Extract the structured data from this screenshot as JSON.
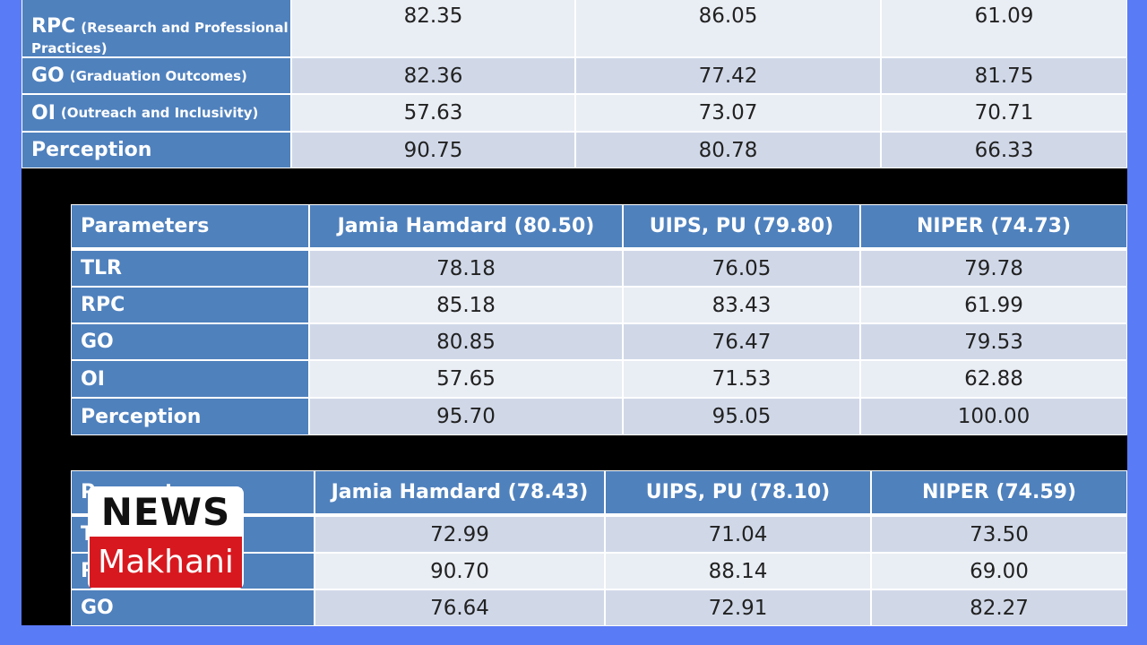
{
  "tables": [
    {
      "rows": [
        {
          "label": "RPC",
          "note": "(Research and Professional Practices)",
          "values": [
            "82.35",
            "86.05",
            "61.09"
          ]
        },
        {
          "label": "GO",
          "note": "(Graduation Outcomes)",
          "values": [
            "82.36",
            "77.42",
            "81.75"
          ]
        },
        {
          "label": "OI",
          "note": "(Outreach and Inclusivity)",
          "values": [
            "57.63",
            "73.07",
            "70.71"
          ]
        },
        {
          "label": "Perception",
          "values": [
            "90.75",
            "80.78",
            "66.33"
          ]
        }
      ]
    },
    {
      "header": [
        "Parameters",
        "Jamia Hamdard  (80.50)",
        "UIPS, PU (79.80)",
        "NIPER (74.73)"
      ],
      "rows": [
        {
          "label": "TLR",
          "values": [
            "78.18",
            "76.05",
            "79.78"
          ]
        },
        {
          "label": "RPC",
          "values": [
            "85.18",
            "83.43",
            "61.99"
          ]
        },
        {
          "label": "GO",
          "values": [
            "80.85",
            "76.47",
            "79.53"
          ]
        },
        {
          "label": "OI",
          "values": [
            "57.65",
            "71.53",
            "62.88"
          ]
        },
        {
          "label": "Perception",
          "values": [
            "95.70",
            "95.05",
            "100.00"
          ]
        }
      ]
    },
    {
      "header": [
        "Parameters",
        "Jamia Hamdard  (78.43)",
        "UIPS, PU (78.10)",
        "NIPER (74.59)"
      ],
      "rows": [
        {
          "label": "TLR",
          "values": [
            "72.99",
            "71.04",
            "73.50"
          ]
        },
        {
          "label": "RPC",
          "values": [
            "90.70",
            "88.14",
            "69.00"
          ]
        },
        {
          "label": "GO",
          "values": [
            "76.64",
            "72.91",
            "82.27"
          ]
        }
      ]
    }
  ],
  "logo": {
    "top": "NEWS",
    "bottom": "Makhani"
  }
}
